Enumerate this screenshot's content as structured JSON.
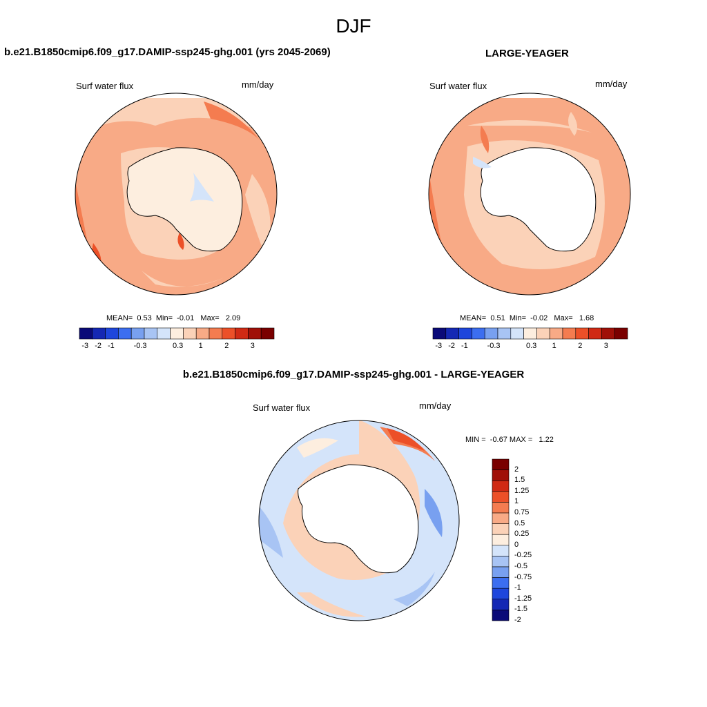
{
  "season": "DJF",
  "colors": {
    "h_scale": [
      "#0a0a78",
      "#1428b4",
      "#1e46dc",
      "#3c6ef0",
      "#78a0f0",
      "#a8c4f4",
      "#d4e4fa",
      "#fdeedf",
      "#fbd2b8",
      "#f8aa86",
      "#f47c50",
      "#ec5028",
      "#d02a14",
      "#a01008",
      "#7a0000"
    ],
    "d_scale": [
      "#0a0a78",
      "#1428b4",
      "#1e46dc",
      "#3c6ef0",
      "#78a0f0",
      "#a8c4f4",
      "#d4e4fa",
      "#fdeedf",
      "#fbd2b8",
      "#f8aa86",
      "#f47c50",
      "#ec5028",
      "#d02a14",
      "#a01008",
      "#7a0000"
    ]
  },
  "panels": [
    {
      "title": "b.e21.B1850cmip6.f09_g17.DAMIP-ssp245-ghg.001 (yrs 2045-2069)",
      "variable": "Surf water flux",
      "units": "mm/day",
      "stats": {
        "mean_label": "MEAN=",
        "mean": "0.53",
        "min_label": "Min=",
        "min": "-0.01",
        "max_label": "Max=",
        "max": "2.09"
      },
      "colorbar_ticks": [
        "-3",
        "-2",
        "-1",
        "-0.3",
        "0.3",
        "1",
        "2",
        "3"
      ]
    },
    {
      "title": "LARGE-YEAGER",
      "variable": "Surf water flux",
      "units": "mm/day",
      "stats": {
        "mean_label": "MEAN=",
        "mean": "0.51",
        "min_label": "Min=",
        "min": "-0.02",
        "max_label": "Max=",
        "max": "1.68"
      },
      "colorbar_ticks": [
        "-3",
        "-2",
        "-1",
        "-0.3",
        "0.3",
        "1",
        "2",
        "3"
      ]
    },
    {
      "title": "b.e21.B1850cmip6.f09_g17.DAMIP-ssp245-ghg.001 - LARGE-YEAGER",
      "variable": "Surf water flux",
      "units": "mm/day",
      "stats": {
        "min_label": "MIN =",
        "min": "-0.67",
        "max_label": "MAX =",
        "max": "1.22"
      },
      "colorbar_ticks": [
        "2",
        "1.5",
        "1.25",
        "1",
        "0.75",
        "0.5",
        "0.25",
        "0",
        "-0.25",
        "-0.5",
        "-0.75",
        "-1",
        "-1.25",
        "-1.5",
        "-2"
      ]
    }
  ]
}
